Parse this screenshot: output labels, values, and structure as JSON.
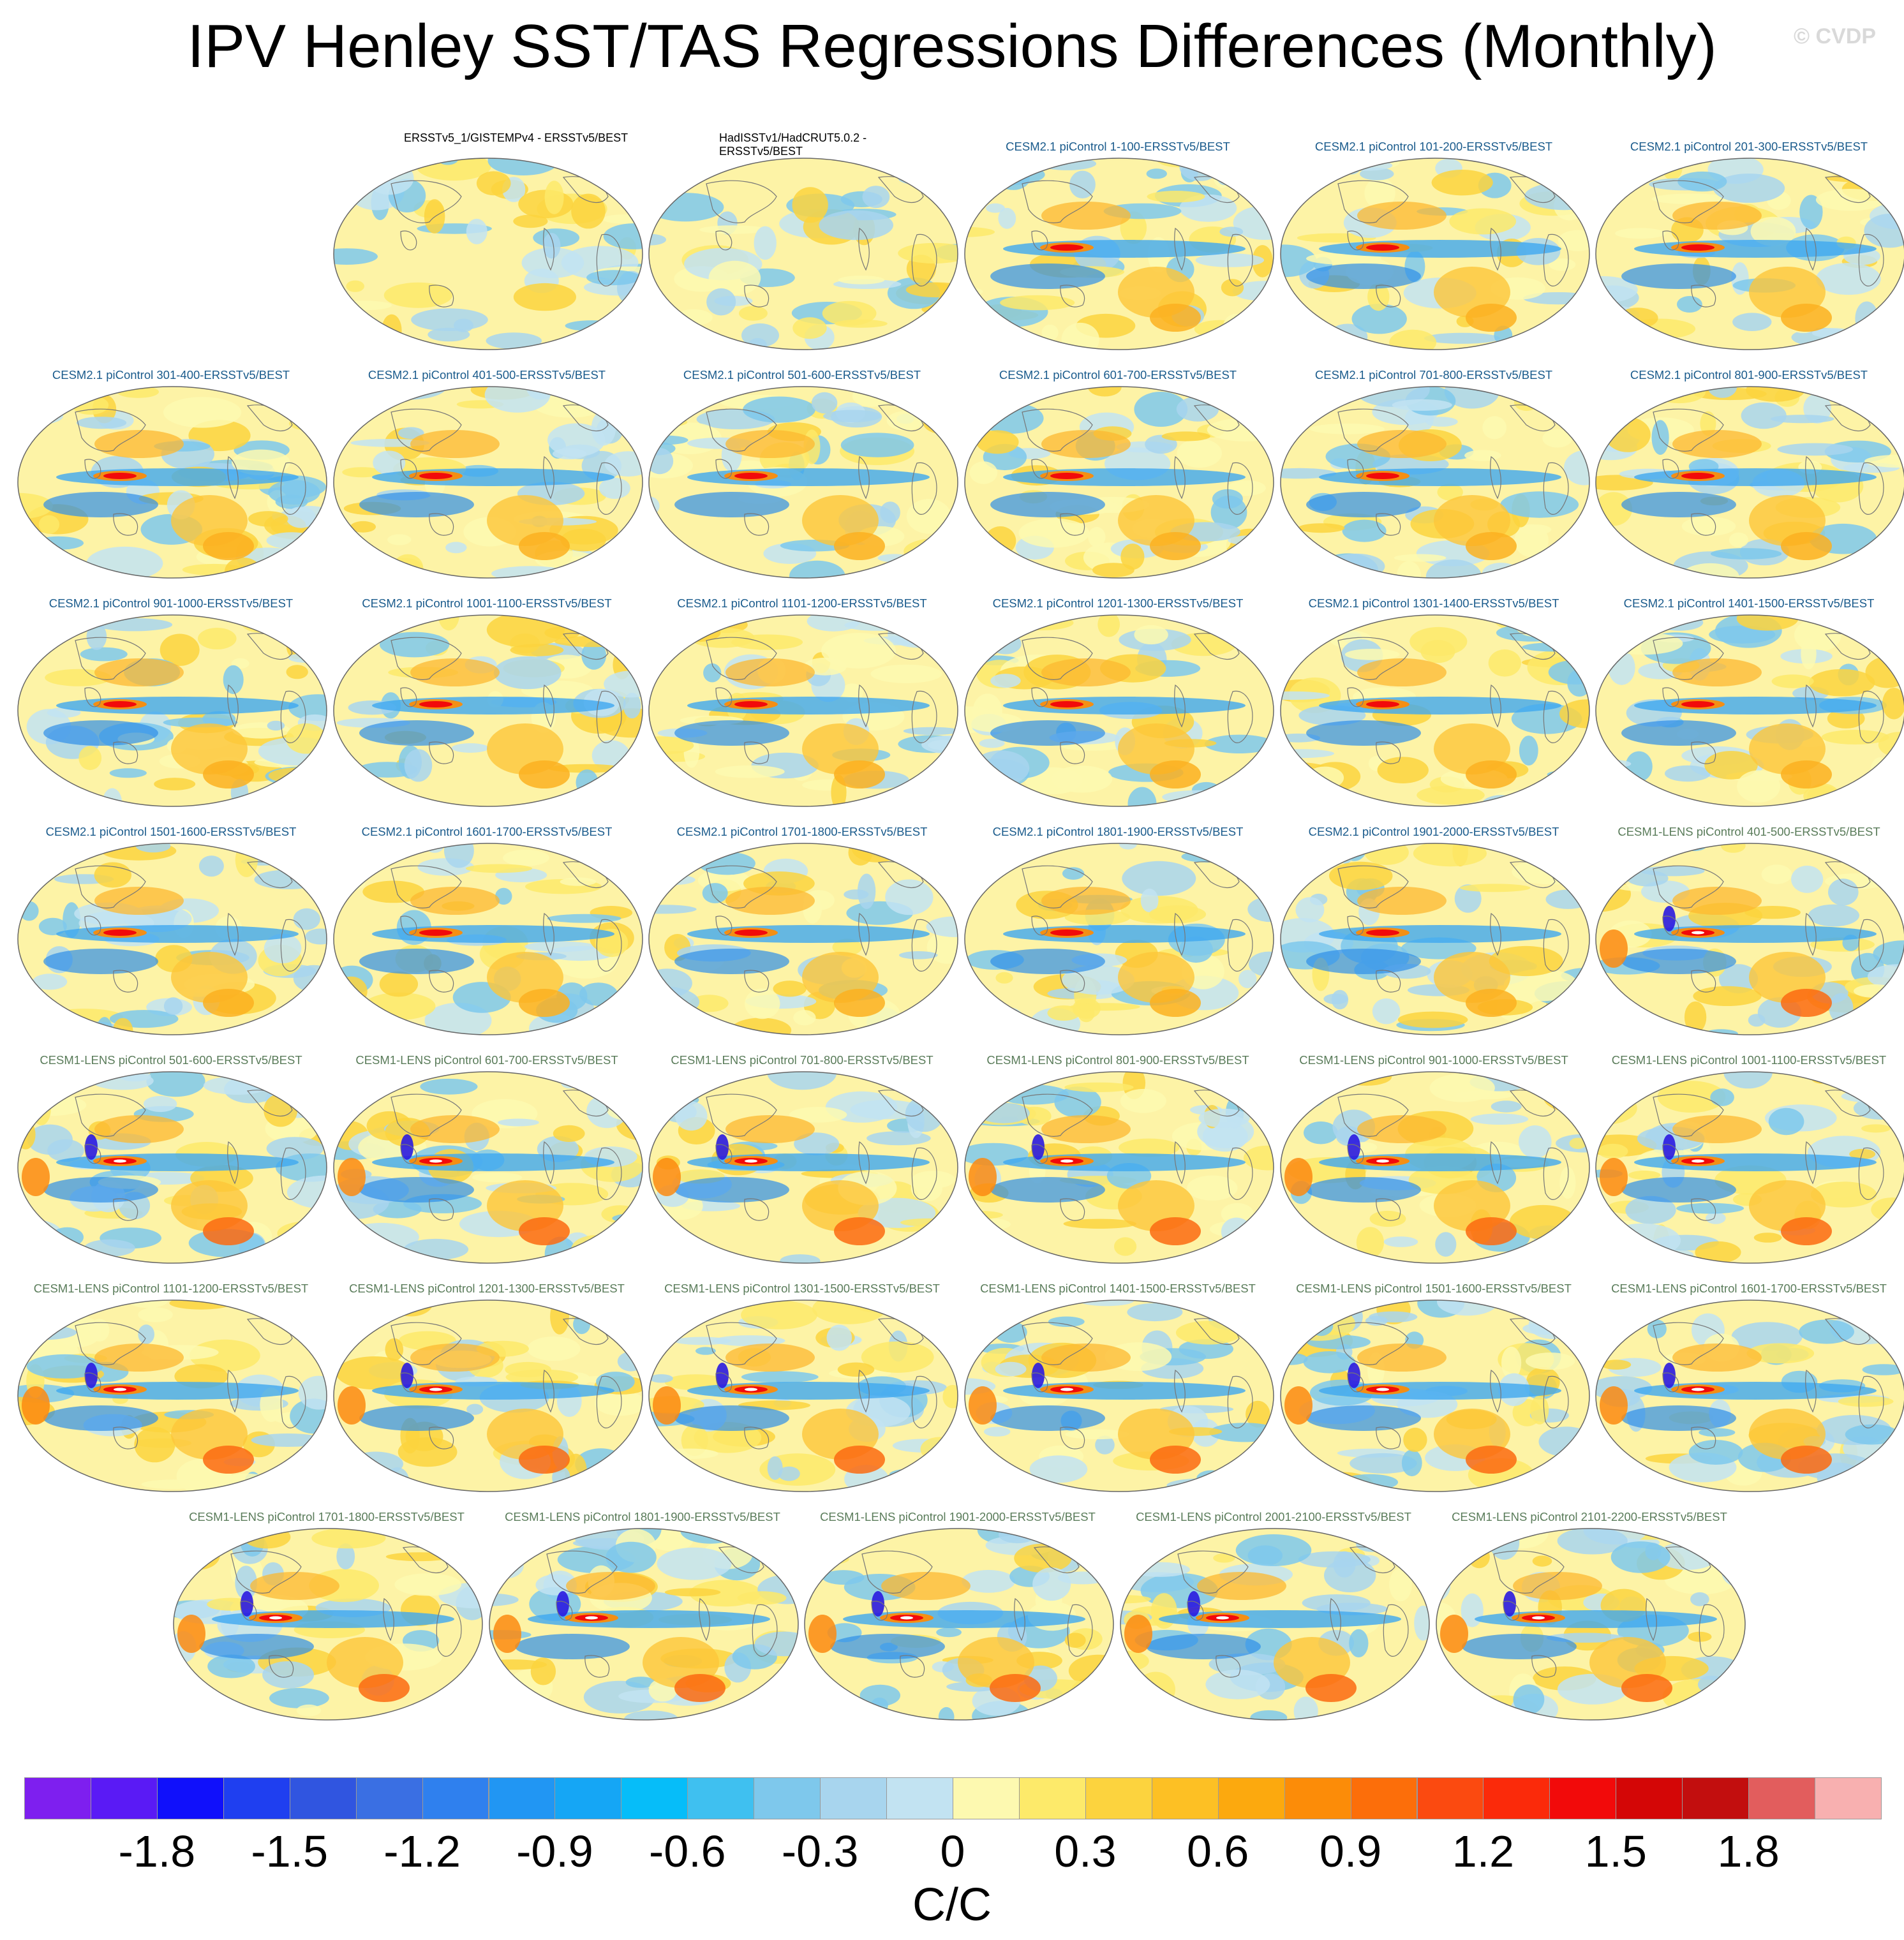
{
  "title": "IPV Henley SST/TAS Regressions Differences (Monthly)",
  "watermark": "© CVDP",
  "colors": {
    "obs_title": "#000000",
    "cesm2_title": "#1a5b8c",
    "cesm1_title": "#5a7c5a"
  },
  "panels": [
    {
      "label": "ERSSTv5_1/GISTEMPv4 - ERSSTv5/BEST",
      "group": "obs",
      "intensity": 0.2
    },
    {
      "label": "HadISSTv1/HadCRUT5.0.2 - ERSSTv5/BEST",
      "group": "obs",
      "intensity": 0.2
    },
    {
      "label": "CESM2.1 piControl 1-100-ERSSTv5/BEST",
      "group": "cesm2",
      "intensity": 0.8
    },
    {
      "label": "CESM2.1 piControl 101-200-ERSSTv5/BEST",
      "group": "cesm2",
      "intensity": 0.8
    },
    {
      "label": "CESM2.1 piControl 201-300-ERSSTv5/BEST",
      "group": "cesm2",
      "intensity": 0.8
    },
    {
      "label": "CESM2.1 piControl 301-400-ERSSTv5/BEST",
      "group": "cesm2",
      "intensity": 0.85
    },
    {
      "label": "CESM2.1 piControl 401-500-ERSSTv5/BEST",
      "group": "cesm2",
      "intensity": 0.85
    },
    {
      "label": "CESM2.1 piControl 501-600-ERSSTv5/BEST",
      "group": "cesm2",
      "intensity": 0.85
    },
    {
      "label": "CESM2.1 piControl 601-700-ERSSTv5/BEST",
      "group": "cesm2",
      "intensity": 0.85
    },
    {
      "label": "CESM2.1 piControl 701-800-ERSSTv5/BEST",
      "group": "cesm2",
      "intensity": 0.85
    },
    {
      "label": "CESM2.1 piControl 801-900-ERSSTv5/BEST",
      "group": "cesm2",
      "intensity": 0.85
    },
    {
      "label": "CESM2.1 piControl 901-1000-ERSSTv5/BEST",
      "group": "cesm2",
      "intensity": 0.85
    },
    {
      "label": "CESM2.1 piControl 1001-1100-ERSSTv5/BEST",
      "group": "cesm2",
      "intensity": 0.85
    },
    {
      "label": "CESM2.1 piControl 1101-1200-ERSSTv5/BEST",
      "group": "cesm2",
      "intensity": 0.85
    },
    {
      "label": "CESM2.1 piControl 1201-1300-ERSSTv5/BEST",
      "group": "cesm2",
      "intensity": 0.85
    },
    {
      "label": "CESM2.1 piControl 1301-1400-ERSSTv5/BEST",
      "group": "cesm2",
      "intensity": 0.85
    },
    {
      "label": "CESM2.1 piControl 1401-1500-ERSSTv5/BEST",
      "group": "cesm2",
      "intensity": 0.85
    },
    {
      "label": "CESM2.1 piControl 1501-1600-ERSSTv5/BEST",
      "group": "cesm2",
      "intensity": 0.85
    },
    {
      "label": "CESM2.1 piControl 1601-1700-ERSSTv5/BEST",
      "group": "cesm2",
      "intensity": 0.85
    },
    {
      "label": "CESM2.1 piControl 1701-1800-ERSSTv5/BEST",
      "group": "cesm2",
      "intensity": 0.85
    },
    {
      "label": "CESM2.1 piControl 1801-1900-ERSSTv5/BEST",
      "group": "cesm2",
      "intensity": 0.85
    },
    {
      "label": "CESM2.1 piControl 1901-2000-ERSSTv5/BEST",
      "group": "cesm2",
      "intensity": 0.85
    },
    {
      "label": "CESM1-LENS piControl 401-500-ERSSTv5/BEST",
      "group": "cesm1",
      "intensity": 1.0
    },
    {
      "label": "CESM1-LENS piControl 501-600-ERSSTv5/BEST",
      "group": "cesm1",
      "intensity": 1.0
    },
    {
      "label": "CESM1-LENS piControl 601-700-ERSSTv5/BEST",
      "group": "cesm1",
      "intensity": 1.0
    },
    {
      "label": "CESM1-LENS piControl 701-800-ERSSTv5/BEST",
      "group": "cesm1",
      "intensity": 1.0
    },
    {
      "label": "CESM1-LENS piControl 801-900-ERSSTv5/BEST",
      "group": "cesm1",
      "intensity": 1.0
    },
    {
      "label": "CESM1-LENS piControl 901-1000-ERSSTv5/BEST",
      "group": "cesm1",
      "intensity": 1.0
    },
    {
      "label": "CESM1-LENS piControl 1001-1100-ERSSTv5/BEST",
      "group": "cesm1",
      "intensity": 1.0
    },
    {
      "label": "CESM1-LENS piControl 1101-1200-ERSSTv5/BEST",
      "group": "cesm1",
      "intensity": 1.0
    },
    {
      "label": "CESM1-LENS piControl 1201-1300-ERSSTv5/BEST",
      "group": "cesm1",
      "intensity": 1.0
    },
    {
      "label": "CESM1-LENS piControl 1301-1500-ERSSTv5/BEST",
      "group": "cesm1",
      "intensity": 1.0
    },
    {
      "label": "CESM1-LENS piControl 1401-1500-ERSSTv5/BEST",
      "group": "cesm1",
      "intensity": 1.0
    },
    {
      "label": "CESM1-LENS piControl 1501-1600-ERSSTv5/BEST",
      "group": "cesm1",
      "intensity": 1.0
    },
    {
      "label": "CESM1-LENS piControl 1601-1700-ERSSTv5/BEST",
      "group": "cesm1",
      "intensity": 1.0
    },
    {
      "label": "CESM1-LENS piControl 1701-1800-ERSSTv5/BEST",
      "group": "cesm1",
      "intensity": 1.0
    },
    {
      "label": "CESM1-LENS piControl 1801-1900-ERSSTv5/BEST",
      "group": "cesm1",
      "intensity": 1.0
    },
    {
      "label": "CESM1-LENS piControl 1901-2000-ERSSTv5/BEST",
      "group": "cesm1",
      "intensity": 1.0
    },
    {
      "label": "CESM1-LENS piControl 2001-2100-ERSSTv5/BEST",
      "group": "cesm1",
      "intensity": 1.0
    },
    {
      "label": "CESM1-LENS piControl 2101-2200-ERSSTv5/BEST",
      "group": "cesm1",
      "intensity": 1.0
    }
  ],
  "colorbar": {
    "colors": [
      "#7e1fef",
      "#5a1af5",
      "#1010fb",
      "#1f3ff0",
      "#3055e0",
      "#3a6fe3",
      "#2f80ee",
      "#2196f3",
      "#15a6f5",
      "#06bdf9",
      "#3fc0f0",
      "#7ec8ec",
      "#a8d5ee",
      "#c2e3f2",
      "#fdf9b0",
      "#fdea6a",
      "#fcd33e",
      "#fdc024",
      "#fca90e",
      "#fc8c08",
      "#fc6e0a",
      "#fb4a10",
      "#fb2a0a",
      "#f20a0a",
      "#d40606",
      "#c20e0e",
      "#e25d5d",
      "#f8b0b0"
    ],
    "labels": [
      "-1.8",
      "-1.5",
      "-1.2",
      "-0.9",
      "-0.6",
      "-0.3",
      "0",
      "0.3",
      "0.6",
      "0.9",
      "1.2",
      "1.5",
      "1.8"
    ],
    "units": "C/C"
  }
}
